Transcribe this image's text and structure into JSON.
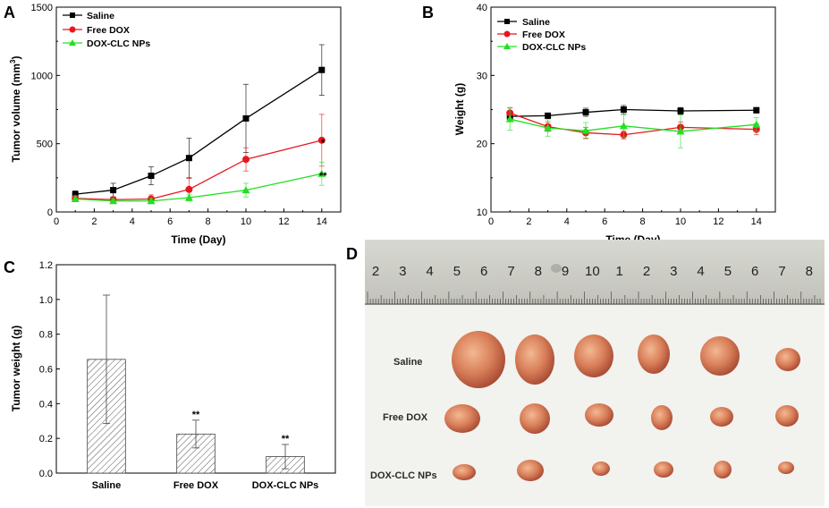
{
  "panels": {
    "a": "A",
    "b": "B",
    "c": "C",
    "d": "D"
  },
  "chart_data": [
    {
      "id": "A",
      "type": "line",
      "xlabel": "Time (Day)",
      "ylabel": "Tumor volume (mm",
      "ylabel_sup": "3",
      "ylabel_end": ")",
      "xlim": [
        0,
        15
      ],
      "ylim": [
        0,
        1500
      ],
      "xticks": [
        "0",
        "2",
        "4",
        "6",
        "8",
        "10",
        "12",
        "14"
      ],
      "yticks": [
        "0",
        "500",
        "1000",
        "1500"
      ],
      "x": [
        1,
        3,
        5,
        7,
        10,
        14
      ],
      "series": [
        {
          "name": "Saline",
          "color": "#000000",
          "marker": "square",
          "values": [
            130,
            160,
            265,
            395,
            685,
            1040
          ],
          "errors": [
            25,
            50,
            65,
            145,
            250,
            185
          ]
        },
        {
          "name": "Free DOX",
          "color": "#e8161d",
          "marker": "circle",
          "values": [
            100,
            90,
            95,
            165,
            385,
            525
          ],
          "errors": [
            20,
            20,
            30,
            80,
            85,
            190
          ]
        },
        {
          "name": "DOX-CLC NPs",
          "color": "#22e022",
          "marker": "triangle",
          "values": [
            95,
            80,
            80,
            105,
            160,
            280
          ],
          "errors": [
            15,
            15,
            20,
            25,
            50,
            85
          ]
        }
      ],
      "annotations": [
        "*",
        "**"
      ]
    },
    {
      "id": "B",
      "type": "line",
      "xlabel": "Time (Day)",
      "ylabel": "Weight (g)",
      "xlim": [
        0,
        15
      ],
      "ylim": [
        10,
        40
      ],
      "xticks": [
        "0",
        "2",
        "4",
        "6",
        "8",
        "10",
        "12",
        "14"
      ],
      "yticks": [
        "10",
        "20",
        "30",
        "40"
      ],
      "x": [
        1,
        3,
        5,
        7,
        10,
        14
      ],
      "series": [
        {
          "name": "Saline",
          "color": "#000000",
          "marker": "square",
          "values": [
            24.0,
            24.1,
            24.6,
            25.0,
            24.8,
            24.9
          ],
          "errors": [
            0.6,
            0.4,
            0.6,
            0.6,
            0.5,
            0.4
          ]
        },
        {
          "name": "Free DOX",
          "color": "#e8161d",
          "marker": "circle",
          "values": [
            24.5,
            22.5,
            21.6,
            21.3,
            22.4,
            22.1
          ],
          "errors": [
            0.8,
            0.7,
            0.8,
            0.6,
            0.8,
            0.8
          ]
        },
        {
          "name": "DOX-CLC NPs",
          "color": "#22e022",
          "marker": "triangle",
          "values": [
            23.6,
            22.3,
            21.9,
            22.6,
            21.8,
            22.8
          ],
          "errors": [
            1.6,
            1.2,
            1.2,
            1.6,
            2.4,
            1.0
          ]
        }
      ]
    },
    {
      "id": "C",
      "type": "bar",
      "ylabel": "Tumor weight (g)",
      "categories": [
        "Saline",
        "Free DOX",
        "DOX-CLC NPs"
      ],
      "values": [
        0.655,
        0.225,
        0.095
      ],
      "errors": [
        0.37,
        0.08,
        0.07
      ],
      "significance": [
        "",
        "**",
        "**"
      ],
      "ylim": [
        0,
        1.2
      ],
      "yticks": [
        "0.0",
        "0.2",
        "0.4",
        "0.6",
        "0.8",
        "1.0",
        "1.2"
      ]
    }
  ],
  "photo": {
    "ruler_numbers": [
      "2",
      "3",
      "4",
      "5",
      "6",
      "7",
      "8",
      "9",
      "10",
      "1",
      "2",
      "3",
      "4",
      "5",
      "6",
      "7",
      "8"
    ],
    "row_labels": [
      "Saline",
      "Free DOX",
      "DOX-CLC NPs"
    ]
  }
}
